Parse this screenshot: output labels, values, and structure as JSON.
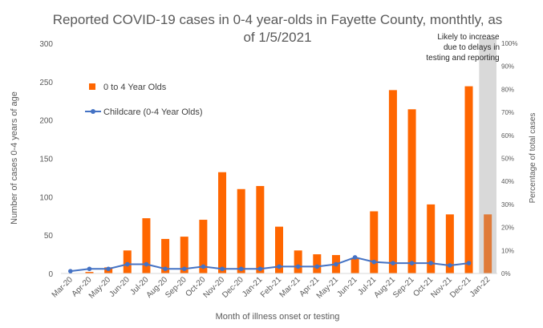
{
  "chart_data": {
    "type": "bar",
    "title_line1": "Reported COVID-19 cases in 0-4 year-olds in Fayette County, monthtly, as",
    "title_line2": "of 1/5/2021",
    "xlabel": "Month of illness onset or testing",
    "ylabel": "Number of cases 0-4 years of age",
    "y2label": "Percentage of total cases",
    "ylim": [
      0,
      300
    ],
    "y_ticks": [
      "0",
      "50",
      "100",
      "150",
      "200",
      "250",
      "300"
    ],
    "y2lim": [
      0,
      100
    ],
    "y2_ticks": [
      "0%",
      "10%",
      "20%",
      "30%",
      "40%",
      "50%",
      "60%",
      "70%",
      "80%",
      "90%",
      "100%"
    ],
    "categories": [
      "Mar-20",
      "Apr-20",
      "May-20",
      "Jun-20",
      "Jul-20",
      "Aug-20",
      "Sep-20",
      "Oct-20",
      "Nov-20",
      "Dec-20",
      "Jan-21",
      "Feb-21",
      "Mar-21",
      "Apr-21",
      "May-21",
      "Jun-21",
      "Jul-21",
      "Aug-21",
      "Sep-21",
      "Oct-21",
      "Nov-21",
      "Dec-21",
      "Jan-22"
    ],
    "series": [
      {
        "name": "0 to 4 Year Olds",
        "kind": "bar",
        "axis": "left",
        "color": "#FF6600",
        "values": [
          0,
          2,
          8,
          30,
          72,
          45,
          48,
          70,
          132,
          110,
          114,
          61,
          30,
          25,
          24,
          20,
          81,
          239,
          214,
          90,
          77,
          244,
          77
        ]
      },
      {
        "name": "Childcare (0-4 Year Olds)",
        "kind": "line",
        "axis": "right",
        "unit": "percent",
        "color": "#4472C4",
        "values": [
          1,
          2,
          2,
          4,
          4,
          2,
          2,
          3,
          2,
          2,
          2,
          3,
          3,
          3,
          4,
          7,
          5,
          4.5,
          4.5,
          4.5,
          3.5,
          4.5,
          null
        ]
      }
    ],
    "highlight": {
      "category": "Jan-22",
      "bar_color": "#E07B39",
      "band_color": "#D9D9D9",
      "annotation": [
        "Likely to increase",
        "due to delays in",
        "testing and reporting"
      ]
    },
    "legend_position": "upper-left inside plot",
    "grid": false
  }
}
